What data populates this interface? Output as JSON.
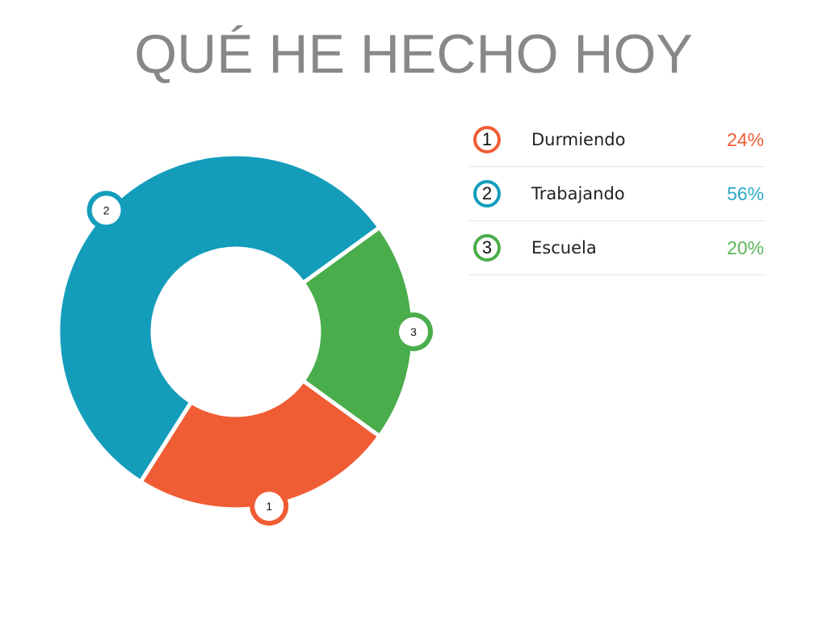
{
  "title": "QUÉ HE HECHO HOY",
  "chart_data": {
    "type": "pie",
    "donut": true,
    "start_angle_deg": 126,
    "categories": [
      "Durmiendo",
      "Trabajando",
      "Escuela"
    ],
    "markers": [
      "1",
      "2",
      "3"
    ],
    "values": [
      24,
      56,
      20
    ],
    "value_labels": [
      "24%",
      "56%",
      "20%"
    ],
    "colors": [
      "#f05d35",
      "#149dbb",
      "#4aad4b"
    ],
    "legend": "right"
  }
}
